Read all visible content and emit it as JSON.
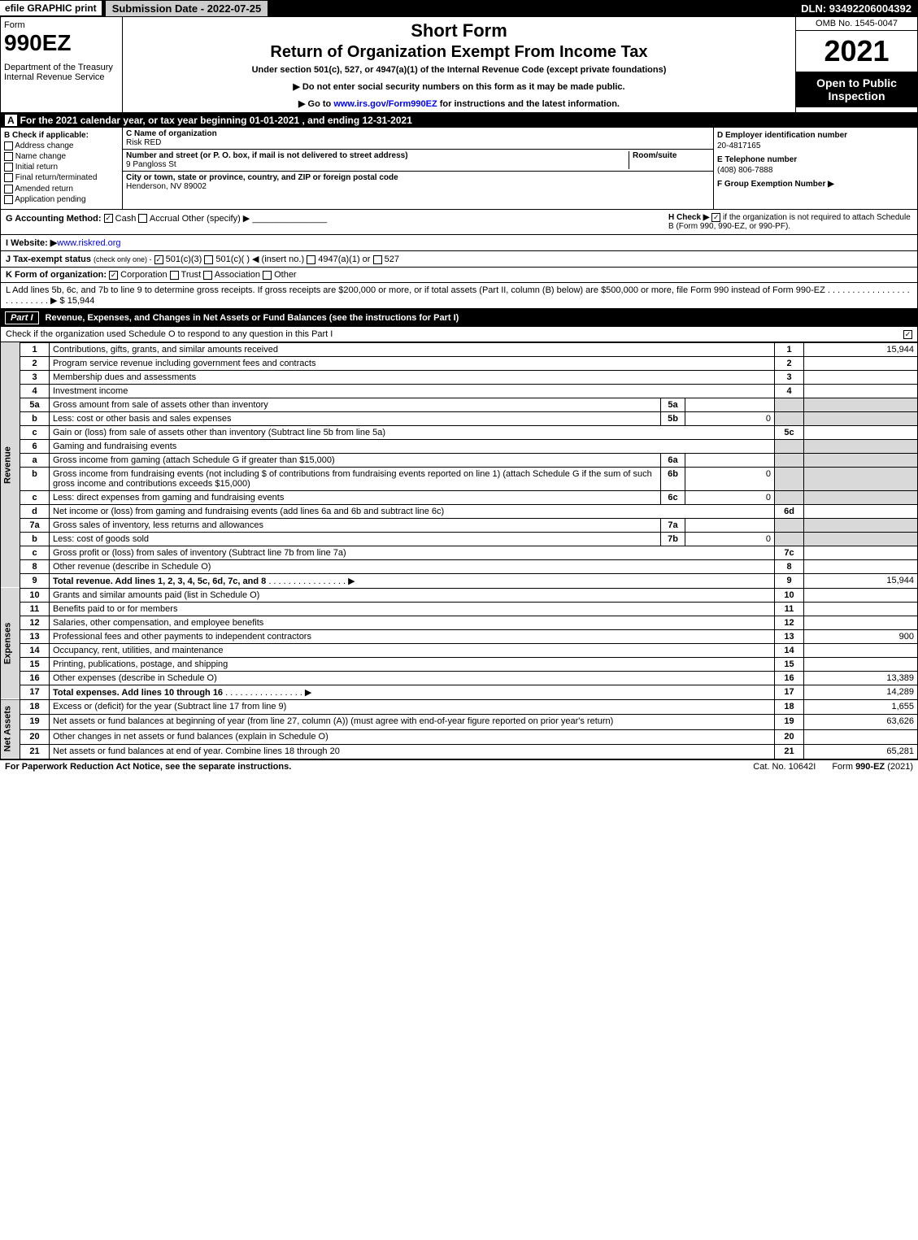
{
  "topbar": {
    "efile": "efile GRAPHIC print",
    "submission": "Submission Date - 2022-07-25",
    "dln": "DLN: 93492206004392"
  },
  "header": {
    "form_label": "Form",
    "form_number": "990EZ",
    "dept": "Department of the Treasury\nInternal Revenue Service",
    "title1": "Short Form",
    "title2": "Return of Organization Exempt From Income Tax",
    "subtitle": "Under section 501(c), 527, or 4947(a)(1) of the Internal Revenue Code (except private foundations)",
    "note1": "▶ Do not enter social security numbers on this form as it may be made public.",
    "note2_pre": "▶ Go to ",
    "note2_link": "www.irs.gov/Form990EZ",
    "note2_post": " for instructions and the latest information.",
    "omb": "OMB No. 1545-0047",
    "year": "2021",
    "open": "Open to Public Inspection"
  },
  "line_a": "For the 2021 calendar year, or tax year beginning 01-01-2021 , and ending 12-31-2021",
  "box_b": {
    "header": "Check if applicable:",
    "opts": [
      "Address change",
      "Name change",
      "Initial return",
      "Final return/terminated",
      "Amended return",
      "Application pending"
    ]
  },
  "box_c": {
    "name_label": "C Name of organization",
    "name": "Risk RED",
    "street_label": "Number and street (or P. O. box, if mail is not delivered to street address)",
    "room_label": "Room/suite",
    "street": "9 Pangloss St",
    "city_label": "City or town, state or province, country, and ZIP or foreign postal code",
    "city": "Henderson, NV  89002"
  },
  "box_def": {
    "d_label": "D Employer identification number",
    "d_value": "20-4817165",
    "e_label": "E Telephone number",
    "e_value": "(408) 806-7888",
    "f_label": "F Group Exemption Number ▶"
  },
  "line_g": {
    "label": "G Accounting Method:",
    "cash": "Cash",
    "accrual": "Accrual",
    "other": "Other (specify) ▶",
    "h_label": "H  Check ▶",
    "h_text": "if the organization is not required to attach Schedule B (Form 990, 990-EZ, or 990-PF)."
  },
  "line_i": {
    "label": "I Website: ▶",
    "value": "www.riskred.org"
  },
  "line_j": {
    "label": "J Tax-exempt status",
    "sub": "(check only one) -",
    "o1": "501(c)(3)",
    "o2": "501(c)(  ) ◀ (insert no.)",
    "o3": "4947(a)(1) or",
    "o4": "527"
  },
  "line_k": {
    "label": "K Form of organization:",
    "opts": [
      "Corporation",
      "Trust",
      "Association",
      "Other"
    ]
  },
  "line_l": {
    "text": "L Add lines 5b, 6c, and 7b to line 9 to determine gross receipts. If gross receipts are $200,000 or more, or if total assets (Part II, column (B) below) are $500,000 or more, file Form 990 instead of Form 990-EZ",
    "amount": "▶ $ 15,944"
  },
  "part1": {
    "header": "Revenue, Expenses, and Changes in Net Assets or Fund Balances (see the instructions for Part I)",
    "check_o": "Check if the organization used Schedule O to respond to any question in this Part I",
    "side_labels": {
      "revenue": "Revenue",
      "expenses": "Expenses",
      "netassets": "Net Assets"
    },
    "rows": [
      {
        "ln": "1",
        "desc": "Contributions, gifts, grants, and similar amounts received",
        "main_ln": "1",
        "main_amt": "15,944"
      },
      {
        "ln": "2",
        "desc": "Program service revenue including government fees and contracts",
        "main_ln": "2",
        "main_amt": ""
      },
      {
        "ln": "3",
        "desc": "Membership dues and assessments",
        "main_ln": "3",
        "main_amt": ""
      },
      {
        "ln": "4",
        "desc": "Investment income",
        "main_ln": "4",
        "main_amt": ""
      },
      {
        "ln": "5a",
        "desc": "Gross amount from sale of assets other than inventory",
        "sub_ln": "5a",
        "sub_amt": "",
        "shade": true
      },
      {
        "ln": "b",
        "desc": "Less: cost or other basis and sales expenses",
        "sub_ln": "5b",
        "sub_amt": "0",
        "shade": true
      },
      {
        "ln": "c",
        "desc": "Gain or (loss) from sale of assets other than inventory (Subtract line 5b from line 5a)",
        "main_ln": "5c",
        "main_amt": ""
      },
      {
        "ln": "6",
        "desc": "Gaming and fundraising events",
        "shade": true,
        "no_main": true
      },
      {
        "ln": "a",
        "desc": "Gross income from gaming (attach Schedule G if greater than $15,000)",
        "sub_ln": "6a",
        "sub_amt": "",
        "shade": true
      },
      {
        "ln": "b",
        "desc": "Gross income from fundraising events (not including $                 of contributions from fundraising events reported on line 1) (attach Schedule G if the sum of such gross income and contributions exceeds $15,000)",
        "sub_ln": "6b",
        "sub_amt": "0",
        "shade": true
      },
      {
        "ln": "c",
        "desc": "Less: direct expenses from gaming and fundraising events",
        "sub_ln": "6c",
        "sub_amt": "0",
        "shade": true
      },
      {
        "ln": "d",
        "desc": "Net income or (loss) from gaming and fundraising events (add lines 6a and 6b and subtract line 6c)",
        "main_ln": "6d",
        "main_amt": ""
      },
      {
        "ln": "7a",
        "desc": "Gross sales of inventory, less returns and allowances",
        "sub_ln": "7a",
        "sub_amt": "",
        "shade": true
      },
      {
        "ln": "b",
        "desc": "Less: cost of goods sold",
        "sub_ln": "7b",
        "sub_amt": "0",
        "shade": true
      },
      {
        "ln": "c",
        "desc": "Gross profit or (loss) from sales of inventory (Subtract line 7b from line 7a)",
        "main_ln": "7c",
        "main_amt": ""
      },
      {
        "ln": "8",
        "desc": "Other revenue (describe in Schedule O)",
        "main_ln": "8",
        "main_amt": ""
      },
      {
        "ln": "9",
        "desc": "Total revenue. Add lines 1, 2, 3, 4, 5c, 6d, 7c, and 8",
        "arrow": true,
        "bold": true,
        "main_ln": "9",
        "main_amt": "15,944"
      }
    ],
    "exp_rows": [
      {
        "ln": "10",
        "desc": "Grants and similar amounts paid (list in Schedule O)",
        "main_ln": "10",
        "main_amt": ""
      },
      {
        "ln": "11",
        "desc": "Benefits paid to or for members",
        "main_ln": "11",
        "main_amt": ""
      },
      {
        "ln": "12",
        "desc": "Salaries, other compensation, and employee benefits",
        "main_ln": "12",
        "main_amt": ""
      },
      {
        "ln": "13",
        "desc": "Professional fees and other payments to independent contractors",
        "main_ln": "13",
        "main_amt": "900"
      },
      {
        "ln": "14",
        "desc": "Occupancy, rent, utilities, and maintenance",
        "main_ln": "14",
        "main_amt": ""
      },
      {
        "ln": "15",
        "desc": "Printing, publications, postage, and shipping",
        "main_ln": "15",
        "main_amt": ""
      },
      {
        "ln": "16",
        "desc": "Other expenses (describe in Schedule O)",
        "main_ln": "16",
        "main_amt": "13,389"
      },
      {
        "ln": "17",
        "desc": "Total expenses. Add lines 10 through 16",
        "arrow": true,
        "bold": true,
        "main_ln": "17",
        "main_amt": "14,289"
      }
    ],
    "na_rows": [
      {
        "ln": "18",
        "desc": "Excess or (deficit) for the year (Subtract line 17 from line 9)",
        "main_ln": "18",
        "main_amt": "1,655"
      },
      {
        "ln": "19",
        "desc": "Net assets or fund balances at beginning of year (from line 27, column (A)) (must agree with end-of-year figure reported on prior year's return)",
        "main_ln": "19",
        "main_amt": "63,626"
      },
      {
        "ln": "20",
        "desc": "Other changes in net assets or fund balances (explain in Schedule O)",
        "main_ln": "20",
        "main_amt": ""
      },
      {
        "ln": "21",
        "desc": "Net assets or fund balances at end of year. Combine lines 18 through 20",
        "main_ln": "21",
        "main_amt": "65,281"
      }
    ]
  },
  "footer": {
    "left": "For Paperwork Reduction Act Notice, see the separate instructions.",
    "center": "Cat. No. 10642I",
    "right_pre": "Form ",
    "right_bold": "990-EZ",
    "right_post": " (2021)"
  }
}
